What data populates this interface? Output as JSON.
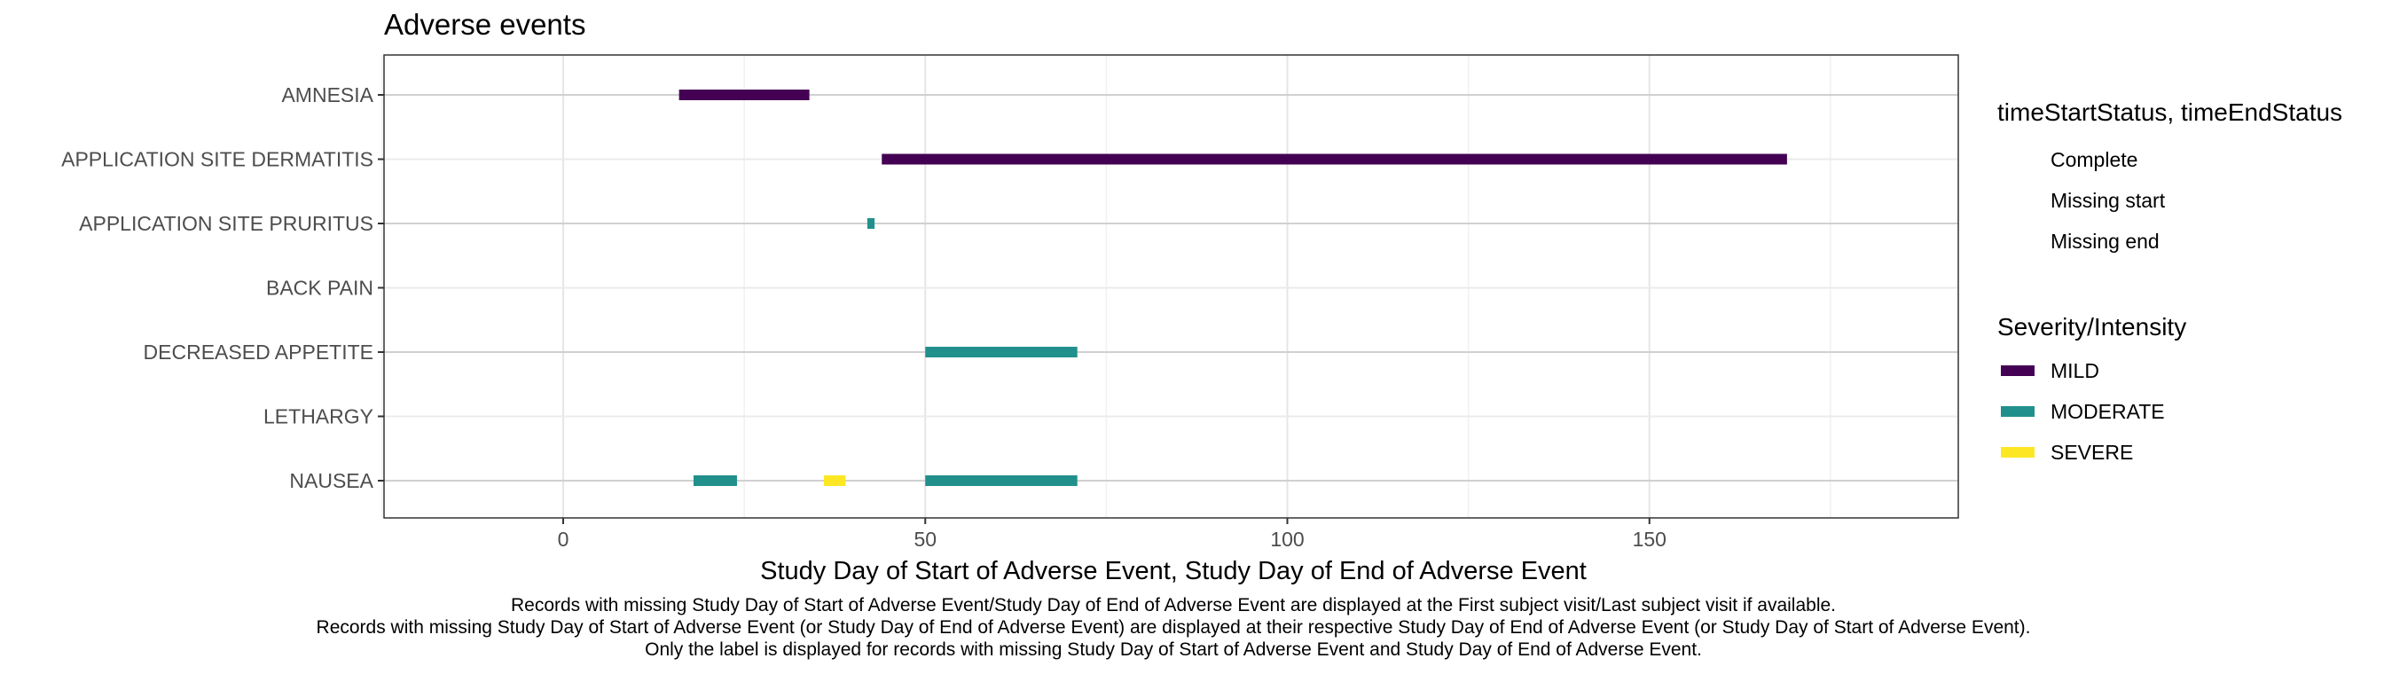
{
  "chart_data": {
    "type": "timeline",
    "title": "Adverse events",
    "xlabel": "Study Day of Start of Adverse Event, Study Day of End of Adverse Event",
    "ylabel": "",
    "xlim": [
      -25,
      194
    ],
    "xticks": [
      0,
      50,
      100,
      150
    ],
    "categories": [
      "AMNESIA",
      "APPLICATION SITE DERMATITIS",
      "APPLICATION SITE PRURITUS",
      "BACK PAIN",
      "DECREASED APPETITE",
      "LETHARGY",
      "NAUSEA"
    ],
    "grid": true,
    "legend_position": "right",
    "legends": [
      {
        "title": "timeStartStatus, timeEndStatus",
        "items": [
          "Complete",
          "Missing start",
          "Missing end"
        ]
      },
      {
        "title": "Severity/Intensity",
        "items": [
          {
            "label": "MILD",
            "color": "#440154"
          },
          {
            "label": "MODERATE",
            "color": "#21908C"
          },
          {
            "label": "SEVERE",
            "color": "#FDE725"
          }
        ]
      }
    ],
    "series": [
      {
        "name": "MILD",
        "color": "#440154",
        "segments": [
          {
            "category": "AMNESIA",
            "start": 16,
            "end": 34
          },
          {
            "category": "APPLICATION SITE DERMATITIS",
            "start": 44,
            "end": 169
          }
        ]
      },
      {
        "name": "MODERATE",
        "color": "#21908C",
        "segments": [
          {
            "category": "APPLICATION SITE PRURITUS",
            "start": 42,
            "end": 43
          },
          {
            "category": "DECREASED APPETITE",
            "start": 50,
            "end": 71
          },
          {
            "category": "NAUSEA",
            "start": 18,
            "end": 24
          },
          {
            "category": "NAUSEA",
            "start": 50,
            "end": 71
          }
        ]
      },
      {
        "name": "SEVERE",
        "color": "#FDE725",
        "segments": [
          {
            "category": "NAUSEA",
            "start": 36,
            "end": 39
          }
        ]
      }
    ],
    "caption": [
      "Records with missing Study Day of Start of Adverse Event/Study Day of End of Adverse Event are displayed at the First subject visit/Last subject visit if available.",
      "Records with missing Study Day of Start of Adverse Event (or Study Day of End of Adverse Event) are displayed at their respective Study Day of End of Adverse Event (or Study Day of Start of Adverse Event).",
      "Only the label is displayed for records with missing Study Day of Start of Adverse Event and Study Day of End of Adverse Event."
    ]
  }
}
